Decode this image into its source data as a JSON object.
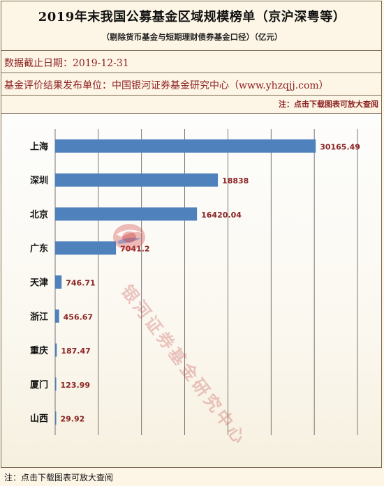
{
  "header": {
    "title": "2019年末我国公募基金区域规模榜单（京沪深粤等）",
    "subtitle": "（剔除货币基金与短期理财债券基金口径）（亿元）",
    "data_date": "数据截止日期：2019-12-31",
    "publisher": "基金评价结果发布单位：中国银河证券基金研究中心（www.yhzqjj.com）",
    "note_top": "注：点击下载图表可放大查阅"
  },
  "watermark": {
    "text": "银河证券基金研究中心",
    "logo_icon": "galaxy-securities-logo"
  },
  "footer": {
    "note": "注：点击下载图表可放大查阅"
  },
  "colors": {
    "bar": "#4f81bd",
    "label": "#8b2323",
    "text": "#8b1e1e"
  },
  "chart_data": {
    "type": "bar",
    "orientation": "horizontal",
    "categories": [
      "上海",
      "深圳",
      "北京",
      "广东",
      "天津",
      "浙江",
      "重庆",
      "厦门",
      "山西"
    ],
    "values": [
      30165.49,
      18838,
      16420.04,
      7041.2,
      746.71,
      456.67,
      187.47,
      123.99,
      29.92
    ],
    "value_labels": [
      "30165.49",
      "18838",
      "16420.04",
      "7041.2",
      "746.71",
      "456.67",
      "187.47",
      "123.99",
      "29.92"
    ],
    "xlim": [
      0,
      35000
    ],
    "grid": true,
    "legend": "none"
  }
}
